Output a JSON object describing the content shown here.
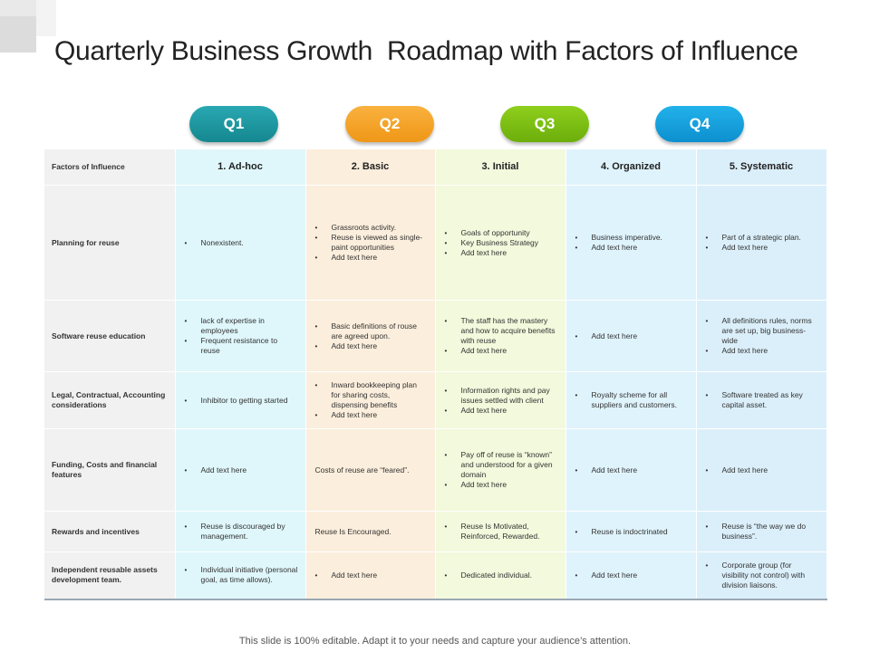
{
  "title": "Quarterly Business Growth  Roadmap with Factors of Influence",
  "quarters": [
    "Q1",
    "Q2",
    "Q3",
    "Q4"
  ],
  "header": {
    "factor_label": "Factors of Influence",
    "stages": [
      "1. Ad-hoc",
      "2. Basic",
      "3. Initial",
      "4. Organized",
      "5. Systematic"
    ]
  },
  "rows": [
    {
      "factor": "Planning for reuse",
      "cells": [
        {
          "type": "list",
          "items": [
            "Nonexistent."
          ]
        },
        {
          "type": "list",
          "items": [
            "Grassroots activity.",
            "Reuse is viewed as single-paint opportunities",
            "Add text here"
          ]
        },
        {
          "type": "list",
          "items": [
            "Goals of opportunity",
            "Key Business Strategy",
            "Add text here"
          ]
        },
        {
          "type": "list",
          "items": [
            "Business imperative.",
            "Add text here"
          ]
        },
        {
          "type": "list",
          "items": [
            "Part of a strategic plan.",
            "Add text here"
          ]
        }
      ]
    },
    {
      "factor": "Software reuse education",
      "cells": [
        {
          "type": "list",
          "items": [
            "lack of expertise in employees",
            "Frequent resistance to reuse"
          ]
        },
        {
          "type": "list",
          "items": [
            "Basic definitions of rouse are agreed upon.",
            "Add text here"
          ]
        },
        {
          "type": "list",
          "items": [
            "The staff has the mastery and how to acquire benefits with reuse",
            "Add text here"
          ]
        },
        {
          "type": "list",
          "items": [
            "Add text here"
          ]
        },
        {
          "type": "list",
          "items": [
            "All definitions rules, norms are set up, big business-wide",
            "Add text here"
          ]
        }
      ]
    },
    {
      "factor": "Legal, Contractual, Accounting considerations",
      "cells": [
        {
          "type": "list",
          "items": [
            "Inhibitor to getting started"
          ]
        },
        {
          "type": "list",
          "items": [
            "Inward bookkeeping plan for sharing costs, dispensing benefits",
            "Add text here"
          ]
        },
        {
          "type": "list",
          "items": [
            "Information rights and pay issues settled with client",
            "Add text here"
          ]
        },
        {
          "type": "list",
          "items": [
            "Royalty scheme for all suppliers and customers."
          ]
        },
        {
          "type": "list",
          "items": [
            "Software treated as key capital asset."
          ]
        }
      ]
    },
    {
      "factor": "Funding, Costs and financial features",
      "cells": [
        {
          "type": "list",
          "items": [
            "Add text here"
          ]
        },
        {
          "type": "text",
          "text": "Costs of reuse are “feared”."
        },
        {
          "type": "list",
          "items": [
            "Pay off of reuse is “known” and understood for a given domain",
            "Add text here"
          ]
        },
        {
          "type": "list",
          "items": [
            "Add text here"
          ]
        },
        {
          "type": "list",
          "items": [
            "Add text here"
          ]
        }
      ]
    },
    {
      "factor": "Rewards and incentives",
      "cells": [
        {
          "type": "list",
          "items": [
            "Reuse is discouraged by management."
          ]
        },
        {
          "type": "text",
          "text": "Reuse Is Encouraged."
        },
        {
          "type": "list",
          "items": [
            "Reuse Is Motivated, Reinforced, Rewarded."
          ]
        },
        {
          "type": "list",
          "items": [
            "Reuse is indoctrinated"
          ]
        },
        {
          "type": "list",
          "items": [
            "Reuse is “the way we do business”."
          ]
        }
      ]
    },
    {
      "factor": "Independent reusable assets development team.",
      "cells": [
        {
          "type": "list",
          "items": [
            "Individual initiative (personal goal, as time allows)."
          ]
        },
        {
          "type": "list",
          "items": [
            "Add text here"
          ]
        },
        {
          "type": "list",
          "items": [
            "Dedicated individual."
          ]
        },
        {
          "type": "list",
          "items": [
            "Add text here"
          ]
        },
        {
          "type": "text",
          "text": "Corporate group (for visibility not control) with division liaisons.",
          "bulleted": true
        }
      ]
    }
  ],
  "footer": "This slide is 100% editable. Adapt it to your needs and capture your audience’s attention."
}
